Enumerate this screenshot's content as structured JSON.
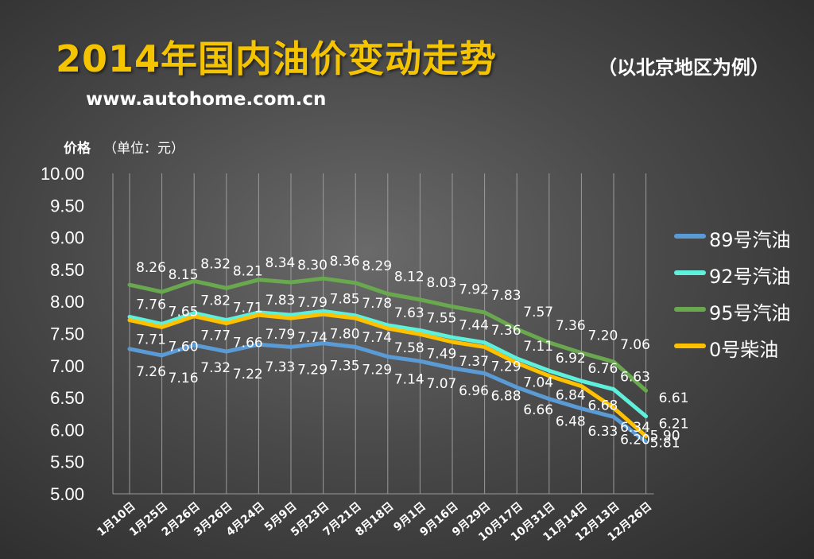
{
  "header": {
    "title": "2014年国内油价变动走势",
    "subtitle": "（以北京地区为例）",
    "website": "www.autohome.com.cn"
  },
  "chart_data": {
    "type": "line",
    "ylabel": "价格",
    "ylabel_unit": "（单位：元）",
    "ylim": [
      5.0,
      10.0
    ],
    "ytick_step": 0.5,
    "ytick_labels": [
      "5.00",
      "5.50",
      "6.00",
      "6.50",
      "7.00",
      "7.50",
      "8.00",
      "8.50",
      "9.00",
      "9.50",
      "10.00"
    ],
    "grid": "vertical",
    "legend_position": "right",
    "categories": [
      "1月10日",
      "1月25日",
      "2月26日",
      "3月26日",
      "4月24日",
      "5月9日",
      "5月23日",
      "7月21日",
      "8月18日",
      "9月1日",
      "9月16日",
      "9月29日",
      "10月17日",
      "10月31日",
      "11月14日",
      "12月13日",
      "12月26日"
    ],
    "series": [
      {
        "name": "89号汽油",
        "color": "#5b9bd5",
        "values": [
          7.26,
          7.16,
          7.32,
          7.22,
          7.33,
          7.29,
          7.35,
          7.29,
          7.14,
          7.07,
          6.96,
          6.88,
          6.66,
          6.48,
          6.33,
          6.2,
          5.81
        ]
      },
      {
        "name": "92号汽油",
        "color": "#5ef0da",
        "values": [
          7.76,
          7.65,
          7.82,
          7.71,
          7.83,
          7.79,
          7.85,
          7.78,
          7.63,
          7.55,
          7.44,
          7.36,
          7.11,
          6.92,
          6.76,
          6.63,
          6.21
        ]
      },
      {
        "name": "95号汽油",
        "color": "#6aa84f",
        "values": [
          8.26,
          8.15,
          8.32,
          8.21,
          8.34,
          8.3,
          8.36,
          8.29,
          8.12,
          8.03,
          7.92,
          7.83,
          7.57,
          7.36,
          7.2,
          7.06,
          6.61
        ]
      },
      {
        "name": "0号柴油",
        "color": "#ffc000",
        "values": [
          7.71,
          7.6,
          7.77,
          7.66,
          7.79,
          7.74,
          7.8,
          7.74,
          7.58,
          7.49,
          7.37,
          7.29,
          7.04,
          6.84,
          6.68,
          6.34,
          5.9
        ]
      }
    ],
    "data_labels": {
      "89号汽油": [
        "7.26",
        "7.16",
        "7.32",
        "7.22",
        "7.33",
        "7.29",
        "7.35",
        "7.29",
        "7.14",
        "7.07",
        "6.96",
        "6.88",
        "6.66",
        "6.48",
        "6.33",
        "6.20",
        "5.81"
      ],
      "92号汽油": [
        "7.76",
        "7.65",
        "7.82",
        "7.71",
        "7.83",
        "7.79",
        "7.85",
        "7.78",
        "7.63",
        "7.55",
        "7.44",
        "7.36",
        "7.11",
        "6.92",
        "6.76",
        "6.63",
        "6.21"
      ],
      "95号汽油": [
        "8.26",
        "8.15",
        "8.32",
        "8.21",
        "8.34",
        "8.30",
        "8.36",
        "8.29",
        "8.12",
        "8.03",
        "7.92",
        "7.83",
        "7.57",
        "7.36",
        "7.20",
        "7.06",
        "6.61"
      ],
      "0号柴油": [
        "7.71",
        "7.60",
        "7.77",
        "7.66",
        "7.79",
        "7.74",
        "7.80",
        "7.74",
        "7.58",
        "7.49",
        "7.37",
        "7.29",
        "7.04",
        "6.84",
        "6.68",
        "6.34",
        "5.90"
      ]
    }
  }
}
